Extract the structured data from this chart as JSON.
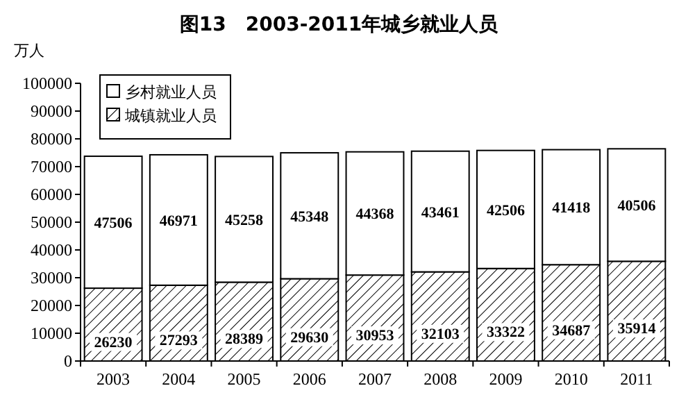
{
  "chart_data": {
    "type": "bar",
    "title": "图13　2003-2011年城乡就业人员",
    "ylabel": "万人",
    "stacked": true,
    "data_labels": true,
    "legend": "top left",
    "grid": false,
    "categories": [
      "2003",
      "2004",
      "2005",
      "2006",
      "2007",
      "2008",
      "2009",
      "2010",
      "2011"
    ],
    "ylim": [
      0,
      100000
    ],
    "yticks": [
      0,
      10000,
      20000,
      30000,
      40000,
      50000,
      60000,
      70000,
      80000,
      90000,
      100000
    ],
    "series": [
      {
        "name": "城镇就业人员",
        "color": "#000000",
        "values": [
          26230,
          27293,
          28389,
          29630,
          30953,
          32103,
          33322,
          34687,
          35914
        ]
      },
      {
        "name": "乡村就业人员",
        "color": "#ffffff",
        "values": [
          47506,
          46971,
          45258,
          45348,
          44368,
          43461,
          42506,
          41418,
          40506
        ]
      }
    ]
  }
}
